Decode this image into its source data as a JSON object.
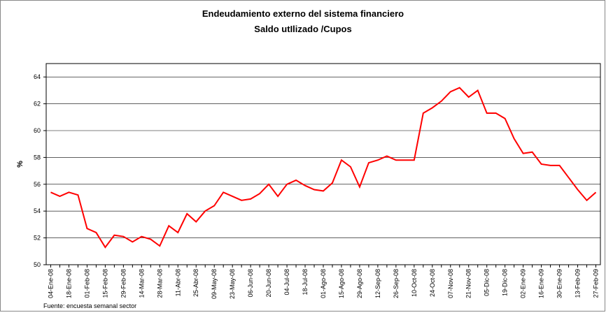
{
  "chart_data": {
    "type": "line",
    "title": "Endeudamiento externo del sistema financiero",
    "subtitle": "Saldo utIlizado /Cupos",
    "y_label": "%",
    "source": "Fuente: encuesta semanal sector",
    "categories": [
      "04-Ene-08",
      null,
      "18-Ene-08",
      null,
      "01-Feb-08",
      null,
      "15-Feb-08",
      null,
      "29-Feb-08",
      null,
      "14-Mar-08",
      null,
      "28-Mar-08",
      null,
      "11-Abr-08",
      null,
      "25-Abr-08",
      null,
      "09-May-08",
      null,
      "23-May-08",
      null,
      "06-Jun-08",
      null,
      "20-Jun-08",
      null,
      "04-Jul-08",
      null,
      "18-Jul-08",
      null,
      "01-Ago-08",
      null,
      "15-Ago-08",
      null,
      "29-Ago-08",
      null,
      "12-Sep-08",
      null,
      "26-Sep-08",
      null,
      "10-Oct-08",
      null,
      "24-Oct-08",
      null,
      "07-Nov-08",
      null,
      "21-Nov-08",
      null,
      "05-Dic-08",
      null,
      "19-Dic-08",
      null,
      "02-Ene-09",
      null,
      "16-Ene-09",
      null,
      "30-Ene-09",
      null,
      "13-Feb-09",
      null,
      "27-Feb-09"
    ],
    "values": [
      55.4,
      55.1,
      55.4,
      55.2,
      52.7,
      52.4,
      51.3,
      52.2,
      52.1,
      51.7,
      52.1,
      51.9,
      51.4,
      52.9,
      52.4,
      53.8,
      53.2,
      54.0,
      54.4,
      55.4,
      55.1,
      54.8,
      54.9,
      55.3,
      56.0,
      55.1,
      56.0,
      56.3,
      55.9,
      55.6,
      55.5,
      56.1,
      57.8,
      57.3,
      55.8,
      57.6,
      57.8,
      58.1,
      57.8,
      57.8,
      57.8,
      61.3,
      61.7,
      62.2,
      62.9,
      63.2,
      62.5,
      63.0,
      61.3,
      61.3,
      60.9,
      59.4,
      58.3,
      58.4,
      57.5,
      57.4,
      57.4,
      56.5,
      55.6,
      54.8,
      55.4
    ],
    "color": "#ff0000",
    "ylim": [
      50,
      65
    ],
    "yticks": [
      50,
      52,
      54,
      56,
      58,
      60,
      62,
      64
    ],
    "grid": true
  }
}
